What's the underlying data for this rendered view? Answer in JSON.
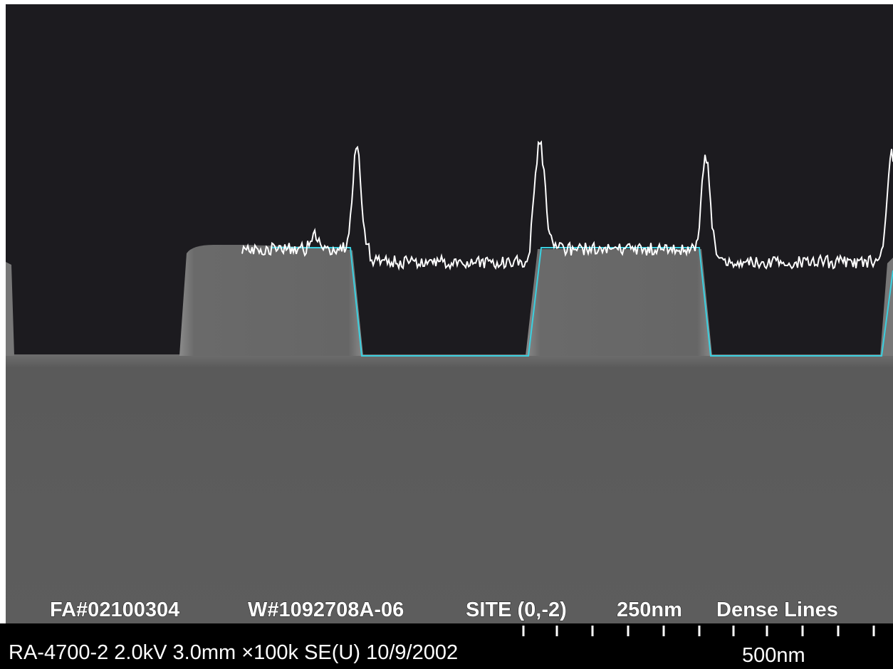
{
  "overlay": {
    "labels": [
      "FA#02100304",
      "W#1092708A-06",
      "SITE (0,-2)",
      "250nm",
      "Dense Lines"
    ]
  },
  "info_bar": {
    "text": "RA-4700-2 2.0kV 3.0mm ×100k SE(U) 10/9/2002",
    "scale": "500nm"
  }
}
